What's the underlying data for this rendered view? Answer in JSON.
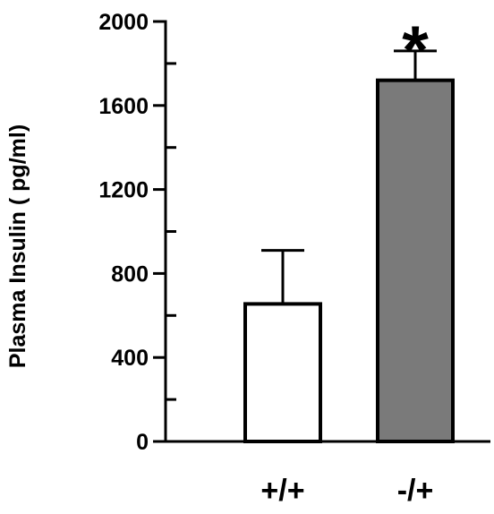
{
  "chart_data": {
    "type": "bar",
    "categories": [
      "+/+",
      "-/+"
    ],
    "values": [
      655,
      1720
    ],
    "error_upper": [
      910,
      1860
    ],
    "ylabel": "Plasma Insulin ( pg/ml)",
    "xlabel": "",
    "ylim": [
      0,
      2000
    ],
    "yticks": [
      0,
      400,
      800,
      1200,
      1600,
      2000
    ],
    "ytick_labels": [
      "0",
      "400",
      "800",
      "1200",
      "1600",
      "2000"
    ],
    "annotation": "*",
    "annotation_category": "-/+",
    "grid": false,
    "legend": "none",
    "bar_colors": [
      "#ffffff",
      "#7a7a7a"
    ],
    "bar_edge_color": "#000000"
  }
}
